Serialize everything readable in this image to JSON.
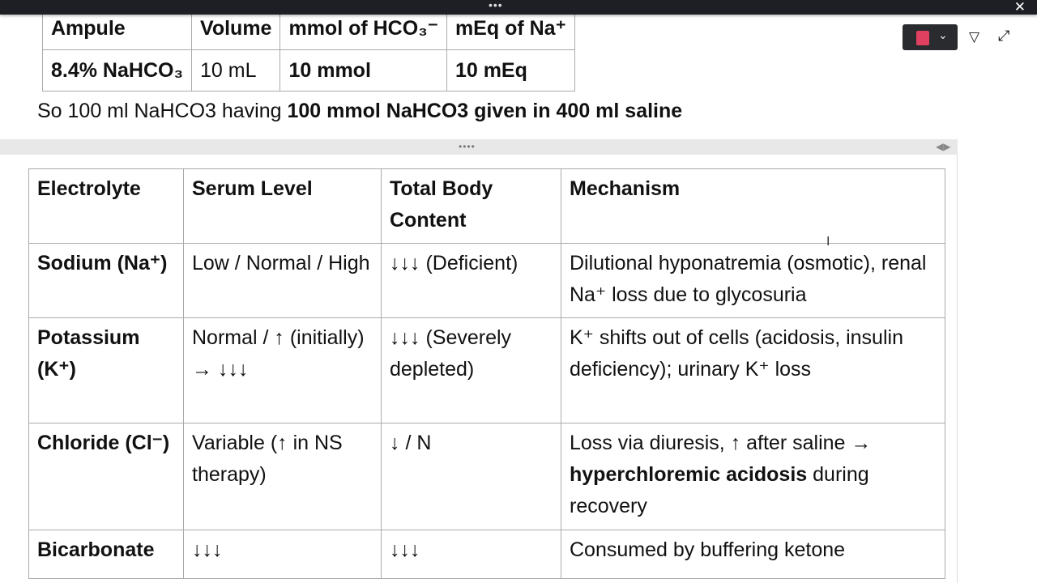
{
  "window": {
    "menu_dots": "•••",
    "close": "✕"
  },
  "toolbar": {
    "notebook_icon": "notebook-icon",
    "dropdown": "⌄",
    "pen_icon": "pen-icon",
    "expand": "⤢"
  },
  "ampule_table": {
    "headers": [
      "Ampule",
      "Volume",
      "mmol of HCO₃⁻",
      "mEq of Na⁺"
    ],
    "row": [
      "8.4% NaHCO₃",
      "10 mL",
      "10 mmol",
      "10 mEq"
    ]
  },
  "note": {
    "prefix": "So 100 ml NaHCO3 having ",
    "bold": "100 mmol NaHCO3 given in 400 ml saline"
  },
  "divider": {
    "grip": "••••",
    "arrows": "◀▶"
  },
  "electrolyte_table": {
    "headers": [
      "Electrolyte",
      "Serum Level",
      "Total Body Content",
      "Mechanism"
    ],
    "rows": [
      {
        "electrolyte": "Sodium (Na⁺)",
        "serum": "Low / Normal / High",
        "total": "↓↓↓ (Deficient)",
        "mechanism": "Dilutional hyponatremia (osmotic), renal Na⁺ loss due to glycosuria"
      },
      {
        "electrolyte": "Potassium (K⁺)",
        "serum": "Normal / ↑ (initially) → ↓↓↓",
        "total": "↓↓↓ (Severely depleted)",
        "mechanism": "K⁺ shifts out of cells (acidosis, insulin deficiency); urinary K⁺ loss"
      },
      {
        "electrolyte": "Chloride (Cl⁻)",
        "serum": "Variable (↑ in NS therapy)",
        "total": "↓ / N",
        "mechanism_pre": "Loss via diuresis, ↑ after saline → ",
        "mechanism_bold": "hyperchloremic acidosis",
        "mechanism_post": " during recovery"
      },
      {
        "electrolyte": "Bicarbonate",
        "serum": "↓↓↓",
        "total": "↓↓↓",
        "mechanism": "Consumed by buffering ketone"
      }
    ]
  }
}
